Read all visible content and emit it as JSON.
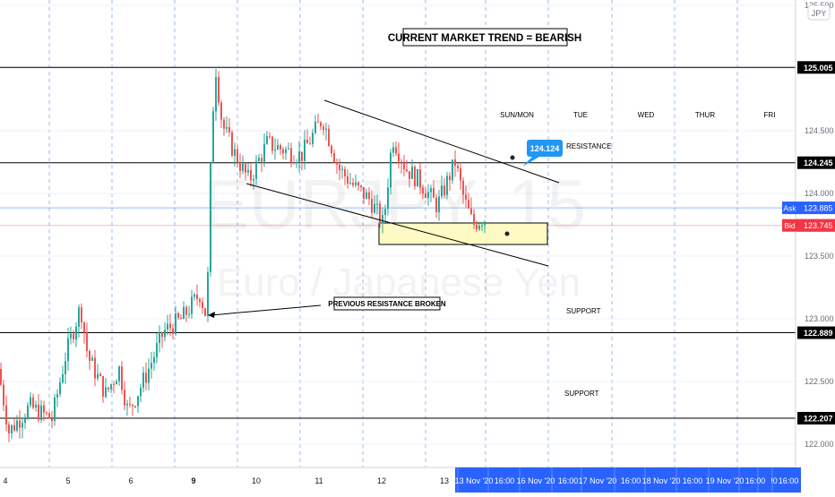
{
  "chart_data": {
    "type": "candlestick",
    "symbol_watermark": "EURJPY, 15",
    "name_watermark": "Euro / Japanese Yen",
    "currency": "JPY",
    "x_ticks": [
      "4",
      "5",
      "6",
      "9",
      "10",
      "11",
      "12",
      "13"
    ],
    "x_time_labels": [
      "13 Nov '20",
      "16:00",
      "16 Nov '20",
      "16:00",
      "17 Nov '20",
      "16:00",
      "18 Nov '20",
      "16:00",
      "19 Nov '20",
      "16:00",
      "!0",
      "16:00"
    ],
    "y_ticks": [
      "125.500",
      "125.000",
      "124.500",
      "124.000",
      "123.500",
      "123.000",
      "122.500",
      "122.000"
    ],
    "ylim": [
      121.75,
      125.55
    ],
    "horizontal_levels": [
      {
        "value": 125.005,
        "label": "125.005"
      },
      {
        "value": 124.245,
        "label": "124.245"
      },
      {
        "value": 122.889,
        "label": "122.889"
      },
      {
        "value": 122.207,
        "label": "122.207"
      }
    ],
    "ask": {
      "label": "Ask",
      "value": "123.885"
    },
    "bid": {
      "label": "Bid",
      "value": "123.745"
    },
    "last": {
      "value": "123.745"
    },
    "weekday_labels": [
      "SUN/MON",
      "TUE",
      "WED",
      "THUR",
      "FRI"
    ],
    "annotations": {
      "trend": "CURRENT MARKET TREND = BEARISH",
      "resistance": "RESISTANCE",
      "support_upper": "SUPPORT",
      "support_lower": "SUPPORT",
      "previous_resistance": "PREVIOUS RESISTANCE BROKEN",
      "price_callout": "124.124"
    },
    "colors": {
      "up": "#26a69a",
      "down": "#ef5350",
      "ask": "#2962ff",
      "bid": "#f23645",
      "grid": "#9dbbe8",
      "callout": "#2196f3",
      "zone": "#fff9c4",
      "axis_highlight": "#2962ff"
    },
    "grid": true
  }
}
